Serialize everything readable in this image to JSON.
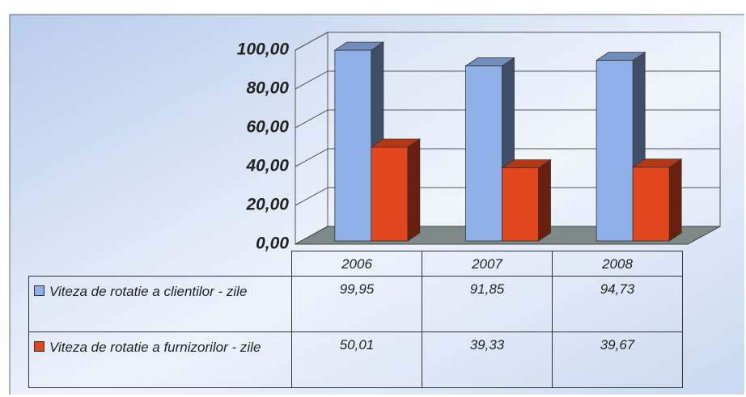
{
  "chart_data": {
    "type": "bar3d",
    "categories": [
      "2006",
      "2007",
      "2008"
    ],
    "series": [
      {
        "name": "Viteza de rotatie a clientilor - zile",
        "color": "#8fb0e8",
        "values": [
          99.95,
          91.85,
          94.73
        ],
        "value_labels": [
          "99,95",
          "91,85",
          "94,73"
        ]
      },
      {
        "name": "Viteza de rotatie a furnizorilor - zile",
        "color": "#e2461c",
        "values": [
          50.01,
          39.33,
          39.67
        ],
        "value_labels": [
          "50,01",
          "39,33",
          "39,67"
        ]
      }
    ],
    "ylim": [
      0,
      100
    ],
    "yticks": [
      {
        "value": 0,
        "label": "0,00"
      },
      {
        "value": 20,
        "label": "20,00"
      },
      {
        "value": 40,
        "label": "40,00"
      },
      {
        "value": 60,
        "label": "60,00"
      },
      {
        "value": 80,
        "label": "80,00"
      },
      {
        "value": 100,
        "label": "100,00"
      }
    ],
    "grid": true,
    "data_table": true
  }
}
